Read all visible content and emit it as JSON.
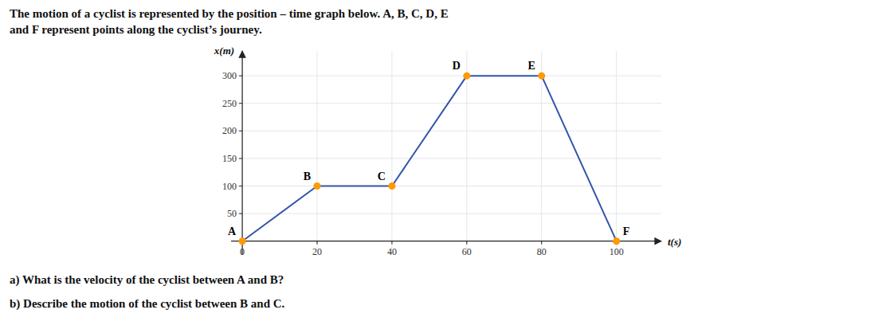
{
  "chart_data": {
    "type": "line",
    "title": "The motion of a cyclist is represented by the position – time graph below. A, B, C, D, E",
    "subtitle": "and F represent points along the cyclist’s journey.",
    "annotations": [
      "a)  What is the velocity of the cyclist between A and B?",
      "b)  Describe the motion of the cyclist between B and C."
    ],
    "xlabel": "t(s)",
    "ylabel": "x(m)",
    "x": [
      0,
      20,
      40,
      60,
      80,
      100
    ],
    "series": [
      {
        "values": [
          0,
          100,
          100,
          300,
          300,
          0
        ],
        "point_labels": [
          "A",
          "B",
          "C",
          "D",
          "E",
          "F"
        ],
        "color": "#3355aa",
        "colors": [
          "#ff9900",
          "#ff9900",
          "#ff9900",
          "#ff9900",
          "#ff9900",
          "#ff9900"
        ]
      }
    ],
    "xlim": [
      -3,
      112
    ],
    "ylim": [
      -25,
      345
    ],
    "xticks": [
      0,
      20,
      40,
      60,
      80,
      100
    ],
    "yticks": [
      50,
      100,
      150,
      200,
      250,
      300
    ],
    "grid": true
  }
}
